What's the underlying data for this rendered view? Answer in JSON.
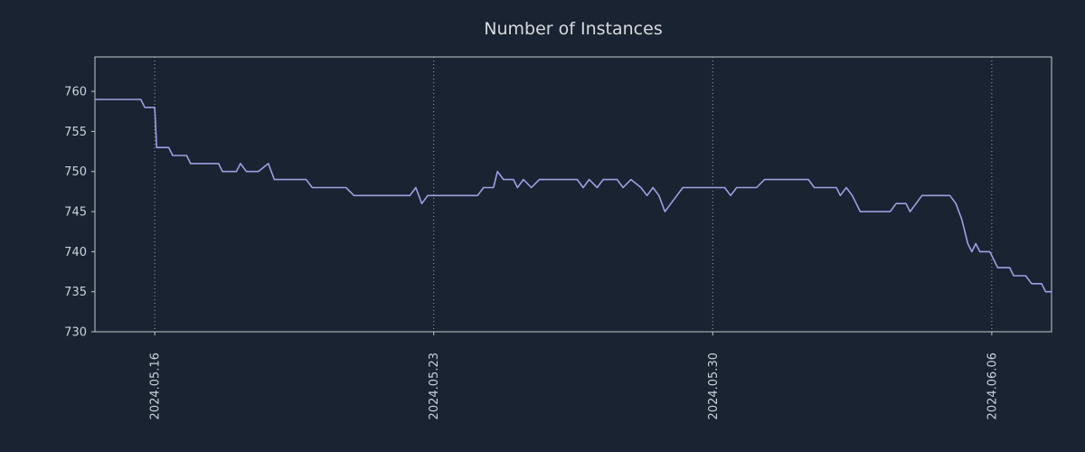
{
  "title": "Number of Instances",
  "colors": {
    "background": "#1a2332",
    "line": "#9f9fe2",
    "text": "#ccd1d8",
    "border": "#c3c8cf",
    "grid": "#b9bfc7"
  },
  "chart_data": {
    "type": "line",
    "title": "Number of Instances",
    "xlabel": "",
    "ylabel": "",
    "legend": "none",
    "grid": "vertical-dotted",
    "x_unit": "days (0 = left edge of plot, ~2024.05.14 12:00)",
    "xlim": [
      0,
      24
    ],
    "ylim": [
      730,
      764.3
    ],
    "y_ticks": [
      730,
      735,
      740,
      745,
      750,
      755,
      760
    ],
    "x_ticks": [
      {
        "day": 1.5,
        "label": "2024.05.16"
      },
      {
        "day": 8.5,
        "label": "2024.05.23"
      },
      {
        "day": 15.5,
        "label": "2024.05.30"
      },
      {
        "day": 22.5,
        "label": "2024.06.06"
      }
    ],
    "series": [
      {
        "name": "instances",
        "points": [
          [
            0,
            759
          ],
          [
            1.15,
            759
          ],
          [
            1.25,
            758
          ],
          [
            1.5,
            758
          ],
          [
            1.55,
            753
          ],
          [
            1.85,
            753
          ],
          [
            1.95,
            752
          ],
          [
            2.3,
            752
          ],
          [
            2.4,
            751
          ],
          [
            3.1,
            751
          ],
          [
            3.2,
            750
          ],
          [
            3.55,
            750
          ],
          [
            3.65,
            751
          ],
          [
            3.8,
            750
          ],
          [
            4.1,
            750
          ],
          [
            4.35,
            751
          ],
          [
            4.5,
            749
          ],
          [
            5.3,
            749
          ],
          [
            5.45,
            748
          ],
          [
            6.3,
            748
          ],
          [
            6.5,
            747
          ],
          [
            7.9,
            747
          ],
          [
            8.05,
            748
          ],
          [
            8.2,
            746
          ],
          [
            8.35,
            747
          ],
          [
            9.6,
            747
          ],
          [
            9.75,
            748
          ],
          [
            10.0,
            748
          ],
          [
            10.1,
            750
          ],
          [
            10.25,
            749
          ],
          [
            10.5,
            749
          ],
          [
            10.6,
            748
          ],
          [
            10.75,
            749
          ],
          [
            10.95,
            748
          ],
          [
            11.15,
            749
          ],
          [
            12.1,
            749
          ],
          [
            12.25,
            748
          ],
          [
            12.4,
            749
          ],
          [
            12.6,
            748
          ],
          [
            12.75,
            749
          ],
          [
            13.1,
            749
          ],
          [
            13.25,
            748
          ],
          [
            13.45,
            749
          ],
          [
            13.7,
            748
          ],
          [
            13.85,
            747
          ],
          [
            14.0,
            748
          ],
          [
            14.15,
            747
          ],
          [
            14.3,
            745
          ],
          [
            14.45,
            746
          ],
          [
            14.6,
            747
          ],
          [
            14.75,
            748
          ],
          [
            15.8,
            748
          ],
          [
            15.95,
            747
          ],
          [
            16.1,
            748
          ],
          [
            16.6,
            748
          ],
          [
            16.8,
            749
          ],
          [
            17.9,
            749
          ],
          [
            18.05,
            748
          ],
          [
            18.6,
            748
          ],
          [
            18.7,
            747
          ],
          [
            18.85,
            748
          ],
          [
            19.0,
            747
          ],
          [
            19.1,
            746
          ],
          [
            19.2,
            745
          ],
          [
            19.95,
            745
          ],
          [
            20.1,
            746
          ],
          [
            20.35,
            746
          ],
          [
            20.45,
            745
          ],
          [
            20.6,
            746
          ],
          [
            20.75,
            747
          ],
          [
            21.45,
            747
          ],
          [
            21.6,
            746
          ],
          [
            21.75,
            744
          ],
          [
            21.9,
            741
          ],
          [
            22.0,
            740
          ],
          [
            22.1,
            741
          ],
          [
            22.2,
            740
          ],
          [
            22.45,
            740
          ],
          [
            22.55,
            739
          ],
          [
            22.65,
            738
          ],
          [
            22.95,
            738
          ],
          [
            23.05,
            737
          ],
          [
            23.35,
            737
          ],
          [
            23.5,
            736
          ],
          [
            23.75,
            736
          ],
          [
            23.85,
            735
          ],
          [
            24.0,
            735
          ]
        ]
      }
    ]
  }
}
